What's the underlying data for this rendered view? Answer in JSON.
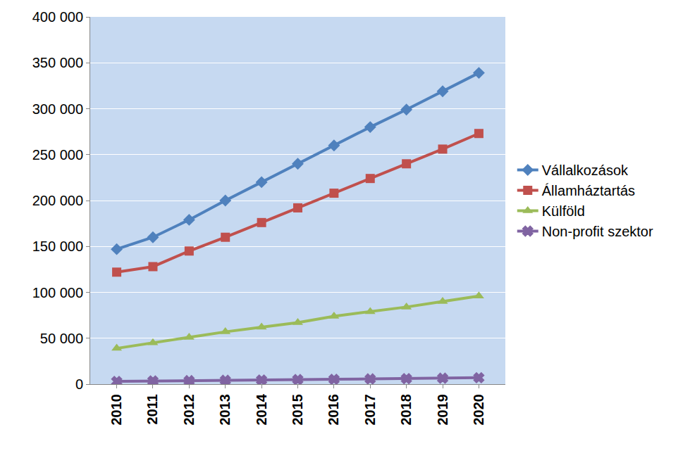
{
  "chart_data": {
    "type": "line",
    "categories": [
      "2010",
      "2011",
      "2012",
      "2013",
      "2014",
      "2015",
      "2016",
      "2017",
      "2018",
      "2019",
      "2020"
    ],
    "series": [
      {
        "name": "Vállalkozások",
        "color": "#4f81bd",
        "marker": "diamond",
        "values": [
          147000,
          160000,
          179000,
          200000,
          220000,
          240000,
          260000,
          280000,
          299000,
          319000,
          339000
        ]
      },
      {
        "name": "Államháztartás",
        "color": "#c0504d",
        "marker": "square",
        "values": [
          122000,
          128000,
          145000,
          160000,
          176000,
          192000,
          208000,
          224000,
          240000,
          256000,
          273000
        ]
      },
      {
        "name": "Külföld",
        "color": "#9bbb59",
        "marker": "triangle-up",
        "values": [
          39000,
          45000,
          51000,
          57000,
          62000,
          67000,
          74000,
          79000,
          84000,
          90000,
          96000
        ]
      },
      {
        "name": "Non-profit szektor",
        "color": "#8064a2",
        "marker": "x",
        "values": [
          3000,
          3500,
          3800,
          4200,
          4500,
          5000,
          5300,
          5700,
          6000,
          6500,
          7000
        ]
      }
    ],
    "ylim": [
      0,
      400000
    ],
    "yticks": [
      0,
      {
        "value": 50000,
        "label": "50 000"
      },
      {
        "value": 100000,
        "label": "100 000"
      },
      {
        "value": 150000,
        "label": "150 000"
      },
      {
        "value": 200000,
        "label": "200 000"
      },
      {
        "value": 250000,
        "label": "250 000"
      },
      {
        "value": 300000,
        "label": "300 000"
      },
      {
        "value": 350000,
        "label": "350 000"
      },
      {
        "value": 400000,
        "label": "400 000"
      }
    ],
    "grid": true,
    "legend": "right"
  }
}
